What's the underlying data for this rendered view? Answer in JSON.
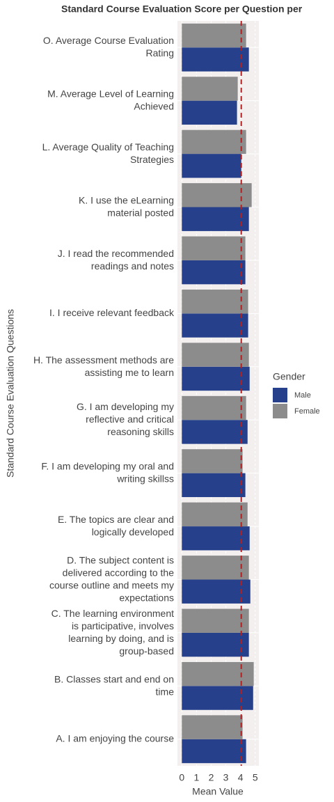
{
  "chart_data": {
    "type": "bar",
    "orientation": "horizontal",
    "title": "Standard Course Evaluation Score per Question per",
    "x_label": "Mean Value",
    "y_label": "Standard Course Evaluation Questions",
    "categories": [
      "O. Average Course Evaluation\nRating",
      "M. Average Level of Learning\nAchieved",
      "L. Average Quality of Teaching\nStrategies",
      "K. I use the eLearning\nmaterial posted",
      "J. I read the recommended\nreadings and notes",
      "I. I receive relevant feedback",
      "H. The assessment methods are\nassisting me to learn",
      "G. I am developing my\nreflective and critical\nreasoning skills",
      "F. I am developing my oral and\nwriting skillss",
      "E. The topics are clear and\nlogically developed",
      "D. The subject content is\ndelivered according to the\ncourse outline and meets my\nexpectations",
      "C. The learning environment\nis participative, involves\nlearning by doing, and is\ngroup-based",
      "B. Classes start and end on\ntime",
      "A. I am enjoying the course"
    ],
    "series": [
      {
        "name": "Male",
        "color": "#27408b",
        "values": [
          4.57,
          3.76,
          4.05,
          4.57,
          4.33,
          4.52,
          4.62,
          4.48,
          4.33,
          4.62,
          4.67,
          4.57,
          4.86,
          4.38
        ]
      },
      {
        "name": "Female",
        "color": "#8c8c8c",
        "values": [
          4.38,
          3.81,
          4.38,
          4.76,
          4.33,
          4.52,
          4.57,
          4.38,
          4.14,
          4.48,
          4.57,
          4.57,
          4.9,
          4.14
        ]
      }
    ],
    "legend_title": "Gender",
    "reference_line": 4.05,
    "reference_color": "#b22222",
    "xlim": [
      -0.3,
      5.25
    ],
    "xticks": [
      0,
      1,
      2,
      3,
      4,
      5
    ],
    "grid": true
  }
}
